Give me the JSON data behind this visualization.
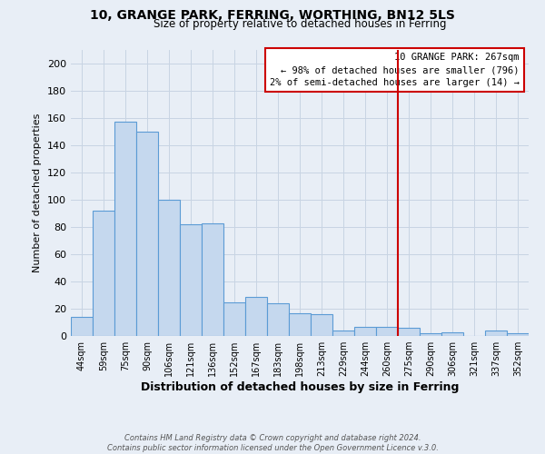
{
  "title": "10, GRANGE PARK, FERRING, WORTHING, BN12 5LS",
  "subtitle": "Size of property relative to detached houses in Ferring",
  "xlabel": "Distribution of detached houses by size in Ferring",
  "ylabel": "Number of detached properties",
  "bar_labels": [
    "44sqm",
    "59sqm",
    "75sqm",
    "90sqm",
    "106sqm",
    "121sqm",
    "136sqm",
    "152sqm",
    "167sqm",
    "183sqm",
    "198sqm",
    "213sqm",
    "229sqm",
    "244sqm",
    "260sqm",
    "275sqm",
    "290sqm",
    "306sqm",
    "321sqm",
    "337sqm",
    "352sqm"
  ],
  "bar_values": [
    14,
    92,
    157,
    150,
    100,
    82,
    83,
    25,
    29,
    24,
    17,
    16,
    4,
    7,
    7,
    6,
    2,
    3,
    0,
    4,
    2
  ],
  "bar_color": "#c5d8ee",
  "bar_edge_color": "#5b9bd5",
  "grid_color": "#c8d4e3",
  "background_color": "#e8eef6",
  "vline_x_idx": 14,
  "vline_color": "#cc0000",
  "annotation_title": "10 GRANGE PARK: 267sqm",
  "annotation_line1": "← 98% of detached houses are smaller (796)",
  "annotation_line2": "2% of semi-detached houses are larger (14) →",
  "annotation_box_color": "#ffffff",
  "annotation_border_color": "#cc0000",
  "footer_line1": "Contains HM Land Registry data © Crown copyright and database right 2024.",
  "footer_line2": "Contains public sector information licensed under the Open Government Licence v.3.0.",
  "ylim": [
    0,
    210
  ],
  "yticks": [
    0,
    20,
    40,
    60,
    80,
    100,
    120,
    140,
    160,
    180,
    200
  ]
}
